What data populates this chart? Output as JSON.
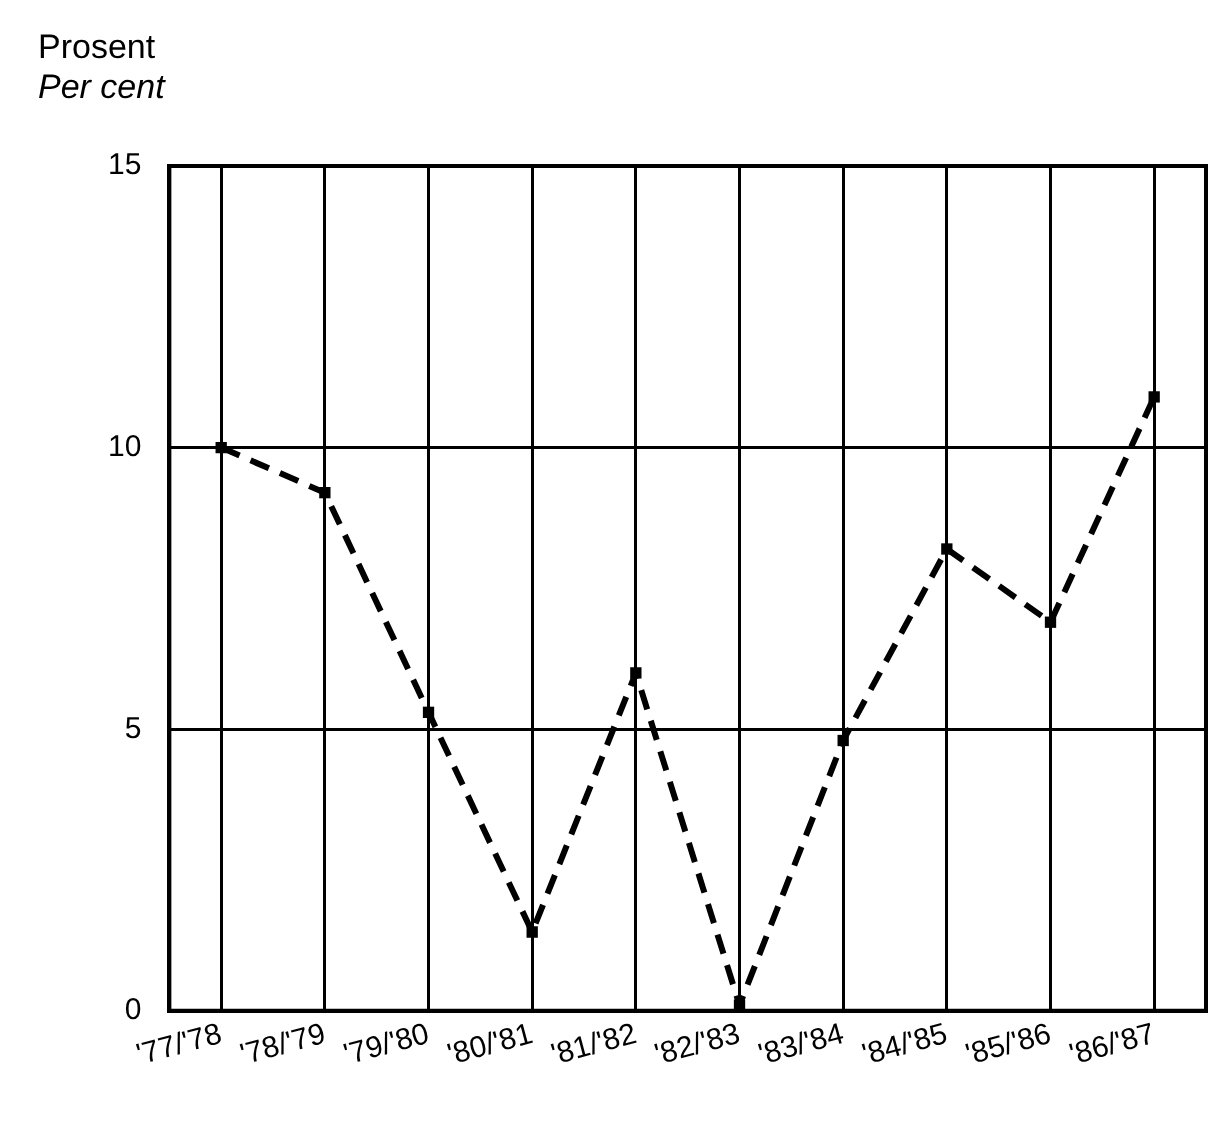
{
  "chart_data": {
    "type": "line",
    "title": "Prosent",
    "subtitle": "Per cent",
    "categories": [
      "'77/'78",
      "'78/'79",
      "'79/'80",
      "'80/'81",
      "'81/'82",
      "'82/'83",
      "'83/'84",
      "'84/'85",
      "'85/'86",
      "'86/'87"
    ],
    "series": [
      {
        "color": "#000000",
        "values": [
          10,
          9.2,
          5.3,
          1.4,
          6.0,
          0.1,
          4.8,
          8.2,
          6.9,
          10.9
        ]
      }
    ],
    "ylim": [
      0,
      15
    ],
    "yticks": [
      0,
      5,
      10,
      15
    ],
    "grid": true,
    "legend": false,
    "marker": "square",
    "line_style": "dashed"
  }
}
